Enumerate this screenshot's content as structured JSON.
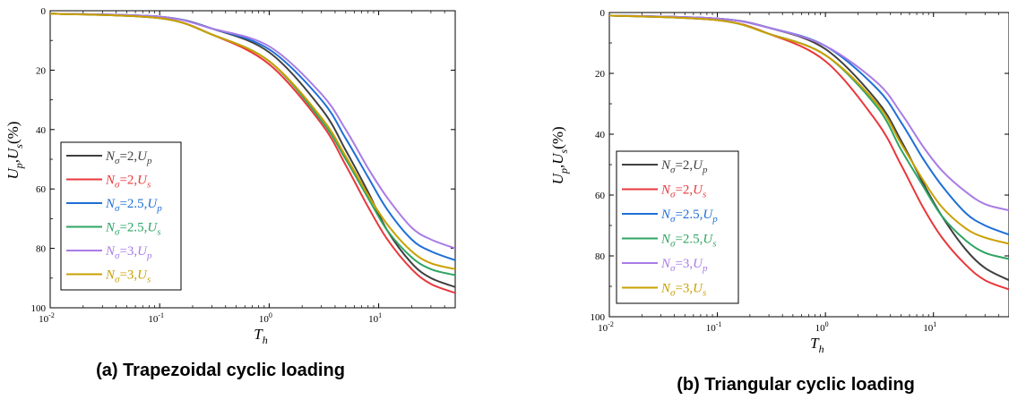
{
  "colors": {
    "s1": "#404040",
    "s2": "#e8383d",
    "s3": "#1f6fd6",
    "s4": "#2ea463",
    "s5": "#a97be6",
    "s6": "#c9a000"
  },
  "chart_data": [
    {
      "type": "line",
      "caption": "(a) Trapezoidal cyclic loading",
      "xlabel": "T_h",
      "ylabel": "U_p,U_s(%)",
      "xscale": "log",
      "xlim": [
        0.01,
        50
      ],
      "ylim": [
        0,
        100
      ],
      "y_inverted": true,
      "xticks": [
        0.01,
        0.1,
        1,
        10
      ],
      "xtick_labels": [
        {
          "base": "10",
          "exp": "-2"
        },
        {
          "base": "10",
          "exp": "-1"
        },
        {
          "base": "10",
          "exp": "0"
        },
        {
          "base": "10",
          "exp": "1"
        }
      ],
      "yticks": [
        0,
        20,
        40,
        60,
        80,
        100
      ],
      "ytick_labels": [
        "0",
        "20",
        "40",
        "60",
        "80",
        "100"
      ],
      "legend_position": "left",
      "series": [
        {
          "name": "Nσ=2,Up",
          "legend": {
            "sym": "N",
            "sub": "σ",
            "val": "=2,",
            "var": "U",
            "varsub": "p"
          },
          "color_key": "s1",
          "points": [
            [
              0.01,
              1
            ],
            [
              0.1,
              2
            ],
            [
              0.3,
              6
            ],
            [
              1,
              14
            ],
            [
              3,
              33
            ],
            [
              5,
              47
            ],
            [
              8,
              61
            ],
            [
              12,
              74
            ],
            [
              20,
              85
            ],
            [
              30,
              90
            ],
            [
              50,
              93
            ]
          ]
        },
        {
          "name": "Nσ=2,Us",
          "legend": {
            "sym": "N",
            "sub": "σ",
            "val": "=2,",
            "var": "U",
            "varsub": "s"
          },
          "color_key": "s2",
          "points": [
            [
              0.01,
              1
            ],
            [
              0.1,
              2.5
            ],
            [
              0.3,
              8
            ],
            [
              1,
              18
            ],
            [
              3,
              38
            ],
            [
              5,
              52
            ],
            [
              8,
              66
            ],
            [
              12,
              77
            ],
            [
              20,
              87
            ],
            [
              30,
              92
            ],
            [
              50,
              95
            ]
          ]
        },
        {
          "name": "Nσ=2.5,Up",
          "legend": {
            "sym": "N",
            "sub": "σ",
            "val": "=2.5,",
            "var": "U",
            "varsub": "p"
          },
          "color_key": "s3",
          "points": [
            [
              0.01,
              1
            ],
            [
              0.1,
              2
            ],
            [
              0.3,
              6
            ],
            [
              1,
              13
            ],
            [
              3,
              30
            ],
            [
              5,
              43
            ],
            [
              8,
              56
            ],
            [
              12,
              67
            ],
            [
              20,
              77
            ],
            [
              30,
              81
            ],
            [
              50,
              84
            ]
          ]
        },
        {
          "name": "Nσ=2.5,Us",
          "legend": {
            "sym": "N",
            "sub": "σ",
            "val": "=2.5,",
            "var": "U",
            "varsub": "s"
          },
          "color_key": "s4",
          "points": [
            [
              0.01,
              1
            ],
            [
              0.1,
              2.5
            ],
            [
              0.3,
              8
            ],
            [
              1,
              17
            ],
            [
              3,
              37
            ],
            [
              5,
              50
            ],
            [
              8,
              63
            ],
            [
              12,
              74
            ],
            [
              20,
              83
            ],
            [
              30,
              87
            ],
            [
              50,
              89
            ]
          ]
        },
        {
          "name": "Nσ=3,Up",
          "legend": {
            "sym": "N",
            "sub": "σ",
            "val": "=3,",
            "var": "U",
            "varsub": "p"
          },
          "color_key": "s5",
          "points": [
            [
              0.01,
              1
            ],
            [
              0.1,
              2
            ],
            [
              0.3,
              6
            ],
            [
              1,
              12
            ],
            [
              3,
              28
            ],
            [
              5,
              40
            ],
            [
              8,
              53
            ],
            [
              12,
              63
            ],
            [
              20,
              73
            ],
            [
              30,
              77
            ],
            [
              50,
              80
            ]
          ]
        },
        {
          "name": "Nσ=3,Us",
          "legend": {
            "sym": "N",
            "sub": "σ",
            "val": "=3,",
            "var": "U",
            "varsub": "s"
          },
          "color_key": "s6",
          "points": [
            [
              0.01,
              1
            ],
            [
              0.1,
              2.5
            ],
            [
              0.3,
              8
            ],
            [
              1,
              17
            ],
            [
              3,
              36
            ],
            [
              5,
              49
            ],
            [
              8,
              62
            ],
            [
              12,
              72
            ],
            [
              20,
              81
            ],
            [
              30,
              85
            ],
            [
              50,
              87
            ]
          ]
        }
      ]
    },
    {
      "type": "line",
      "caption": "(b) Triangular cyclic loading",
      "xlabel": "T_h",
      "ylabel": "U_p,U_s(%)",
      "xscale": "log",
      "xlim": [
        0.01,
        50
      ],
      "ylim": [
        0,
        100
      ],
      "y_inverted": true,
      "xticks": [
        0.01,
        0.1,
        1,
        10
      ],
      "xtick_labels": [
        {
          "base": "10",
          "exp": "-2"
        },
        {
          "base": "10",
          "exp": "-1"
        },
        {
          "base": "10",
          "exp": "0"
        },
        {
          "base": "10",
          "exp": "1"
        }
      ],
      "yticks": [
        0,
        20,
        40,
        60,
        80,
        100
      ],
      "ytick_labels": [
        "0",
        "20",
        "40",
        "60",
        "80",
        "100"
      ],
      "legend_position": "left",
      "series": [
        {
          "name": "Nσ=2,Up",
          "legend": {
            "sym": "N",
            "sub": "σ",
            "val": "=2,",
            "var": "U",
            "varsub": "p"
          },
          "color_key": "s1",
          "points": [
            [
              0.01,
              1
            ],
            [
              0.1,
              2
            ],
            [
              0.3,
              5
            ],
            [
              1,
              12
            ],
            [
              3,
              29
            ],
            [
              5,
              42
            ],
            [
              8,
              56
            ],
            [
              12,
              67
            ],
            [
              20,
              78
            ],
            [
              30,
              84
            ],
            [
              50,
              88
            ]
          ]
        },
        {
          "name": "Nσ=2,Us",
          "legend": {
            "sym": "N",
            "sub": "σ",
            "val": "=2,",
            "var": "U",
            "varsub": "s"
          },
          "color_key": "s2",
          "points": [
            [
              0.01,
              1
            ],
            [
              0.1,
              2.5
            ],
            [
              0.3,
              7
            ],
            [
              1,
              16
            ],
            [
              3,
              36
            ],
            [
              5,
              50
            ],
            [
              8,
              64
            ],
            [
              12,
              74
            ],
            [
              20,
              83
            ],
            [
              30,
              88
            ],
            [
              50,
              91
            ]
          ]
        },
        {
          "name": "Nσ=2.5,Up",
          "legend": {
            "sym": "N",
            "sub": "σ",
            "val": "=2.5,",
            "var": "U",
            "varsub": "p"
          },
          "color_key": "s3",
          "points": [
            [
              0.01,
              1
            ],
            [
              0.1,
              2
            ],
            [
              0.3,
              5
            ],
            [
              1,
              11
            ],
            [
              3,
              25
            ],
            [
              5,
              36
            ],
            [
              8,
              48
            ],
            [
              12,
              57
            ],
            [
              20,
              66
            ],
            [
              30,
              70
            ],
            [
              50,
              73
            ]
          ]
        },
        {
          "name": "Nσ=2.5,Us",
          "legend": {
            "sym": "N",
            "sub": "σ",
            "val": "=2.5,",
            "var": "U",
            "varsub": "s"
          },
          "color_key": "s4",
          "points": [
            [
              0.01,
              1
            ],
            [
              0.1,
              2.5
            ],
            [
              0.3,
              7
            ],
            [
              1,
              14
            ],
            [
              3,
              31
            ],
            [
              5,
              45
            ],
            [
              8,
              57
            ],
            [
              12,
              67
            ],
            [
              20,
              75
            ],
            [
              30,
              79
            ],
            [
              50,
              81
            ]
          ]
        },
        {
          "name": "Nσ=3,Up",
          "legend": {
            "sym": "N",
            "sub": "σ",
            "val": "=3,",
            "var": "U",
            "varsub": "p"
          },
          "color_key": "s5",
          "points": [
            [
              0.01,
              1
            ],
            [
              0.1,
              2
            ],
            [
              0.3,
              5
            ],
            [
              1,
              11
            ],
            [
              3,
              23
            ],
            [
              5,
              33
            ],
            [
              8,
              44
            ],
            [
              12,
              52
            ],
            [
              20,
              59
            ],
            [
              30,
              63
            ],
            [
              50,
              65
            ]
          ]
        },
        {
          "name": "Nσ=3,Us",
          "legend": {
            "sym": "N",
            "sub": "σ",
            "val": "=3,",
            "var": "U",
            "varsub": "s"
          },
          "color_key": "s6",
          "points": [
            [
              0.01,
              1
            ],
            [
              0.1,
              2.5
            ],
            [
              0.3,
              7
            ],
            [
              1,
              14
            ],
            [
              3,
              30
            ],
            [
              5,
              43
            ],
            [
              8,
              55
            ],
            [
              12,
              64
            ],
            [
              20,
              71
            ],
            [
              30,
              74
            ],
            [
              50,
              76
            ]
          ]
        }
      ]
    }
  ]
}
